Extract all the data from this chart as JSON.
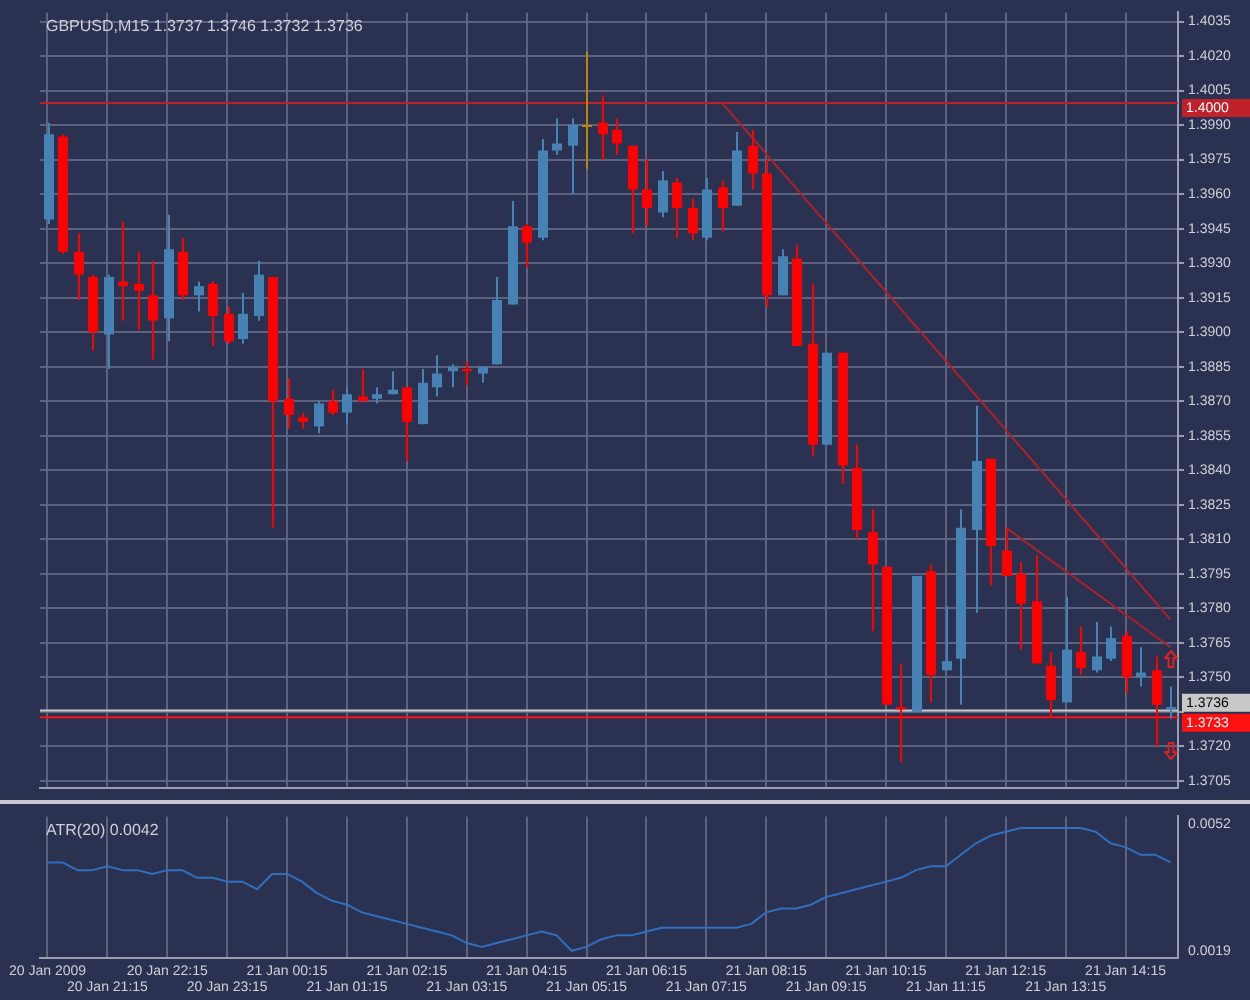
{
  "chart_data": [
    {
      "type": "candlestick",
      "title": "GBPUSD,M15 1.3737 1.3746 1.3732 1.3736",
      "categories": [
        null,
        null,
        null,
        null,
        null,
        null,
        null,
        null,
        null,
        null,
        null,
        null,
        null,
        null,
        null,
        null,
        null,
        null,
        null,
        null,
        null,
        null,
        null,
        null,
        null,
        null,
        null,
        null,
        null,
        null,
        null,
        null,
        null,
        null,
        null,
        null,
        null,
        null,
        null,
        null,
        null,
        null,
        null,
        null,
        null,
        null,
        null,
        null,
        null,
        null,
        null,
        null,
        null,
        null,
        null,
        null,
        null,
        null,
        null,
        null,
        null,
        null,
        null,
        null,
        null,
        null,
        null,
        null,
        null,
        null,
        null,
        null,
        null,
        null,
        null,
        null
      ],
      "ohlc": [
        [
          1.3949,
          1.3991,
          1.3947,
          1.3986
        ],
        [
          1.3985,
          1.3986,
          1.3934,
          1.3935
        ],
        [
          1.3935,
          1.3943,
          1.3914,
          1.3925
        ],
        [
          1.3924,
          1.3925,
          1.3892,
          1.39
        ],
        [
          1.3899,
          1.3925,
          1.3884,
          1.3924
        ],
        [
          1.3922,
          1.3948,
          1.3905,
          1.392
        ],
        [
          1.3921,
          1.3935,
          1.3901,
          1.3918
        ],
        [
          1.3916,
          1.3931,
          1.3888,
          1.3905
        ],
        [
          1.3906,
          1.3951,
          1.3896,
          1.3936
        ],
        [
          1.3935,
          1.3941,
          1.3914,
          1.3916
        ],
        [
          1.3916,
          1.3922,
          1.3909,
          1.392
        ],
        [
          1.3921,
          1.3922,
          1.3894,
          1.3907
        ],
        [
          1.3908,
          1.3911,
          1.3895,
          1.3896
        ],
        [
          1.3897,
          1.3917,
          1.3895,
          1.3908
        ],
        [
          1.3907,
          1.3931,
          1.3905,
          1.3925
        ],
        [
          1.3924,
          1.3924,
          1.3815,
          1.387
        ],
        [
          1.3871,
          1.388,
          1.3858,
          1.3864
        ],
        [
          1.3863,
          1.3865,
          1.3858,
          1.3861
        ],
        [
          1.3859,
          1.387,
          1.3856,
          1.3869
        ],
        [
          1.387,
          1.3875,
          1.3864,
          1.3865
        ],
        [
          1.3865,
          1.3876,
          1.386,
          1.3873
        ],
        [
          1.3872,
          1.3884,
          1.387,
          1.387
        ],
        [
          1.3871,
          1.3876,
          1.3869,
          1.3873
        ],
        [
          1.3873,
          1.3883,
          1.3873,
          1.3875
        ],
        [
          1.3876,
          1.3876,
          1.3844,
          1.3861
        ],
        [
          1.386,
          1.3884,
          1.386,
          1.3878
        ],
        [
          1.3876,
          1.389,
          1.3872,
          1.3882
        ],
        [
          1.3883,
          1.3886,
          1.3876,
          1.3885
        ],
        [
          1.3884,
          1.3887,
          1.3877,
          1.3883
        ],
        [
          1.3882,
          1.3885,
          1.3878,
          1.3885
        ],
        [
          1.3886,
          1.3924,
          1.3886,
          1.3914
        ],
        [
          1.3912,
          1.3957,
          1.3912,
          1.3946
        ],
        [
          1.3946,
          1.3947,
          1.3928,
          1.3939
        ],
        [
          1.3941,
          1.3984,
          1.394,
          1.3979
        ],
        [
          1.3979,
          1.3993,
          1.3977,
          1.3982
        ],
        [
          1.3981,
          1.3993,
          1.396,
          1.399
        ],
        [
          1.399,
          1.4022,
          1.3971,
          1.399
        ],
        [
          1.3991,
          1.4003,
          1.3975,
          1.3986
        ],
        [
          1.3988,
          1.3993,
          1.3977,
          1.3982
        ],
        [
          1.3981,
          1.3981,
          1.3943,
          1.3962
        ],
        [
          1.3962,
          1.3975,
          1.3946,
          1.3954
        ],
        [
          1.3952,
          1.397,
          1.395,
          1.3966
        ],
        [
          1.3965,
          1.3967,
          1.3941,
          1.3954
        ],
        [
          1.3954,
          1.3958,
          1.394,
          1.3943
        ],
        [
          1.3941,
          1.3967,
          1.394,
          1.3962
        ],
        [
          1.3963,
          1.3966,
          1.3944,
          1.3954
        ],
        [
          1.3955,
          1.3987,
          1.3955,
          1.3979
        ],
        [
          1.3981,
          1.3988,
          1.3962,
          1.3969
        ],
        [
          1.3969,
          1.3975,
          1.3911,
          1.3916
        ],
        [
          1.3916,
          1.3936,
          1.3916,
          1.3933
        ],
        [
          1.3932,
          1.3938,
          1.3894,
          1.3894
        ],
        [
          1.3895,
          1.3921,
          1.3846,
          1.3851
        ],
        [
          1.3851,
          1.3891,
          1.3851,
          1.3891
        ],
        [
          1.3891,
          1.3891,
          1.3834,
          1.3842
        ],
        [
          1.3841,
          1.3851,
          1.381,
          1.3814
        ],
        [
          1.3813,
          1.3823,
          1.377,
          1.3799
        ],
        [
          1.3798,
          1.3798,
          1.3738,
          1.3738
        ],
        [
          1.3737,
          1.3756,
          1.3713,
          1.3736
        ],
        [
          1.3735,
          1.3794,
          1.3735,
          1.3794
        ],
        [
          1.3796,
          1.3799,
          1.3739,
          1.3751
        ],
        [
          1.3753,
          1.3781,
          1.3753,
          1.3757
        ],
        [
          1.3758,
          1.3823,
          1.3738,
          1.3815
        ],
        [
          1.3814,
          1.3868,
          1.3778,
          1.3844
        ],
        [
          1.3845,
          1.3845,
          1.379,
          1.3807
        ],
        [
          1.3805,
          1.3815,
          1.3794,
          1.3794
        ],
        [
          1.3795,
          1.38,
          1.3762,
          1.3782
        ],
        [
          1.3783,
          1.3803,
          1.3756,
          1.3756
        ],
        [
          1.3755,
          1.3761,
          1.3733,
          1.374
        ],
        [
          1.3739,
          1.3785,
          1.3739,
          1.3762
        ],
        [
          1.3761,
          1.3772,
          1.3751,
          1.3754
        ],
        [
          1.3753,
          1.3774,
          1.3752,
          1.3759
        ],
        [
          1.3758,
          1.3772,
          1.3757,
          1.3767
        ],
        [
          1.3768,
          1.377,
          1.3743,
          1.375
        ],
        [
          1.375,
          1.3763,
          1.3746,
          1.3752
        ],
        [
          1.3753,
          1.3759,
          1.372,
          1.3738
        ],
        [
          1.3737,
          1.3746,
          1.3732,
          1.3736
        ]
      ],
      "colors": [
        "#4682b4",
        "#ff0000",
        "#ff0000",
        "#ff0000",
        "#4682b4",
        "#ff0000",
        "#ff0000",
        "#ff0000",
        "#4682b4",
        "#ff0000",
        "#4682b4",
        "#ff0000",
        "#ff0000",
        "#4682b4",
        "#4682b4",
        "#ff0000",
        "#ff0000",
        "#ff0000",
        "#4682b4",
        "#ff0000",
        "#4682b4",
        "#ff0000",
        "#4682b4",
        "#4682b4",
        "#ff0000",
        "#4682b4",
        "#4682b4",
        "#4682b4",
        "#ff0000",
        "#4682b4",
        "#4682b4",
        "#4682b4",
        "#ff0000",
        "#4682b4",
        "#4682b4",
        "#4682b4",
        "#b8860b",
        "#ff0000",
        "#ff0000",
        "#ff0000",
        "#ff0000",
        "#4682b4",
        "#ff0000",
        "#ff0000",
        "#4682b4",
        "#ff0000",
        "#4682b4",
        "#ff0000",
        "#ff0000",
        "#4682b4",
        "#ff0000",
        "#ff0000",
        "#4682b4",
        "#ff0000",
        "#ff0000",
        "#ff0000",
        "#ff0000",
        "#ff0000",
        "#4682b4",
        "#ff0000",
        "#4682b4",
        "#4682b4",
        "#4682b4",
        "#ff0000",
        "#ff0000",
        "#ff0000",
        "#ff0000",
        "#ff0000",
        "#4682b4",
        "#ff0000",
        "#4682b4",
        "#4682b4",
        "#ff0000",
        "#4682b4",
        "#ff0000",
        "#4682b4"
      ],
      "series": [
        {
          "type": "line",
          "color": "#b0202a",
          "values": [
            null,
            null,
            null,
            null,
            null,
            null,
            null,
            null,
            null,
            null,
            null,
            null,
            null,
            null,
            null,
            null,
            null,
            null,
            null,
            null,
            null,
            null,
            null,
            null,
            null,
            null,
            null,
            null,
            null,
            null,
            null,
            null,
            null,
            null,
            null,
            null,
            null,
            null,
            null,
            null,
            null,
            null,
            null,
            null,
            null,
            1.4,
            null,
            null,
            null,
            null,
            null,
            null,
            null,
            null,
            null,
            null,
            null,
            null,
            null,
            null,
            null,
            null,
            null,
            null,
            null,
            null,
            null,
            null,
            null,
            null,
            null,
            null,
            null,
            null,
            null,
            1.3775
          ]
        },
        {
          "type": "line",
          "color": "#b0202a",
          "values": [
            null,
            null,
            null,
            null,
            null,
            null,
            null,
            null,
            null,
            null,
            null,
            null,
            null,
            null,
            null,
            null,
            null,
            null,
            null,
            null,
            null,
            null,
            null,
            null,
            null,
            null,
            null,
            null,
            null,
            null,
            null,
            null,
            null,
            null,
            null,
            null,
            null,
            null,
            null,
            null,
            null,
            null,
            null,
            null,
            null,
            null,
            null,
            null,
            null,
            null,
            null,
            null,
            null,
            null,
            null,
            null,
            null,
            null,
            null,
            null,
            null,
            null,
            null,
            null,
            1.3815,
            null,
            null,
            null,
            null,
            null,
            null,
            null,
            null,
            null,
            null,
            1.3763
          ]
        }
      ],
      "ylim": [
        1.3702,
        1.4039
      ],
      "yticks": [
        {
          "value": 1.3705,
          "label": "1.3705"
        },
        {
          "value": 1.372,
          "label": "1.3720"
        },
        {
          "value": 1.3735,
          "label": null
        },
        {
          "value": 1.375,
          "label": "1.3750"
        },
        {
          "value": 1.3765,
          "label": "1.3765"
        },
        {
          "value": 1.378,
          "label": "1.3780"
        },
        {
          "value": 1.3795,
          "label": "1.3795"
        },
        {
          "value": 1.381,
          "label": "1.3810"
        },
        {
          "value": 1.3825,
          "label": "1.3825"
        },
        {
          "value": 1.384,
          "label": "1.3840"
        },
        {
          "value": 1.3855,
          "label": "1.3855"
        },
        {
          "value": 1.387,
          "label": "1.3870"
        },
        {
          "value": 1.3885,
          "label": "1.3885"
        },
        {
          "value": 1.39,
          "label": "1.3900"
        },
        {
          "value": 1.3915,
          "label": "1.3915"
        },
        {
          "value": 1.393,
          "label": "1.3930"
        },
        {
          "value": 1.3945,
          "label": "1.3945"
        },
        {
          "value": 1.396,
          "label": "1.3960"
        },
        {
          "value": 1.3975,
          "label": "1.3975"
        },
        {
          "value": 1.399,
          "label": "1.3990"
        },
        {
          "value": 1.4005,
          "label": "1.4005"
        },
        {
          "value": 1.402,
          "label": "1.4020"
        },
        {
          "value": 1.4035,
          "label": "1.4035"
        }
      ],
      "ref_lines": [
        {
          "axis": "y",
          "value": 1.4,
          "label": "1.4000",
          "color": "#c0202a"
        },
        {
          "axis": "y",
          "value": 1.3736,
          "label": "1.3736",
          "color": "#c8c8c8"
        },
        {
          "axis": "y",
          "value": 1.3733,
          "label": "1.3733",
          "color": "#ff1010"
        }
      ],
      "grid": true,
      "tick_labels": "y"
    },
    {
      "type": "line",
      "title": "ATR(20) 0.0042",
      "categories": [
        "20 Jan 2009",
        null,
        null,
        null,
        "20 Jan 21:15",
        null,
        null,
        null,
        "20 Jan 22:15",
        null,
        null,
        null,
        "20 Jan 23:15",
        null,
        null,
        null,
        "21 Jan 00:15",
        null,
        null,
        null,
        "21 Jan 01:15",
        null,
        null,
        null,
        "21 Jan 02:15",
        null,
        null,
        null,
        "21 Jan 03:15",
        null,
        null,
        null,
        "21 Jan 04:15",
        null,
        null,
        null,
        "21 Jan 05:15",
        null,
        null,
        null,
        "21 Jan 06:15",
        null,
        null,
        null,
        "21 Jan 07:15",
        null,
        null,
        null,
        "21 Jan 08:15",
        null,
        null,
        null,
        "21 Jan 09:15",
        null,
        null,
        null,
        "21 Jan 10:15",
        null,
        null,
        null,
        "21 Jan 11:15",
        null,
        null,
        null,
        "21 Jan 12:15",
        null,
        null,
        null,
        "21 Jan 13:15",
        null,
        null,
        null,
        "21 Jan 14:15",
        null,
        null,
        null
      ],
      "series": [
        {
          "color": "#2e6fc0",
          "values": [
            0.0042,
            0.0042,
            0.004,
            0.004,
            0.0041,
            0.004,
            0.004,
            0.0039,
            0.004,
            0.004,
            0.0038,
            0.0038,
            0.0037,
            0.0037,
            0.0035,
            0.0039,
            0.0039,
            0.0037,
            0.0034,
            0.0032,
            0.0031,
            0.0029,
            0.0028,
            0.0027,
            0.0026,
            0.0025,
            0.0024,
            0.0023,
            0.0021,
            0.002,
            0.0021,
            0.0022,
            0.0023,
            0.0024,
            0.0023,
            0.0019,
            0.002,
            0.0022,
            0.0023,
            0.0023,
            0.0024,
            0.0025,
            0.0025,
            0.0025,
            0.0025,
            0.0025,
            0.0025,
            0.0026,
            0.0029,
            0.003,
            0.003,
            0.0031,
            0.0033,
            0.0034,
            0.0035,
            0.0036,
            0.0037,
            0.0038,
            0.004,
            0.0041,
            0.0041,
            0.0044,
            0.0047,
            0.0049,
            0.005,
            0.0051,
            0.0051,
            0.0051,
            0.0051,
            0.0051,
            0.005,
            0.0047,
            0.0046,
            0.0044,
            0.0044,
            0.0042
          ]
        }
      ],
      "ylim": [
        0.0017,
        0.0054
      ],
      "yticks": [
        0.0019,
        0.0052
      ],
      "grid": "x"
    }
  ]
}
